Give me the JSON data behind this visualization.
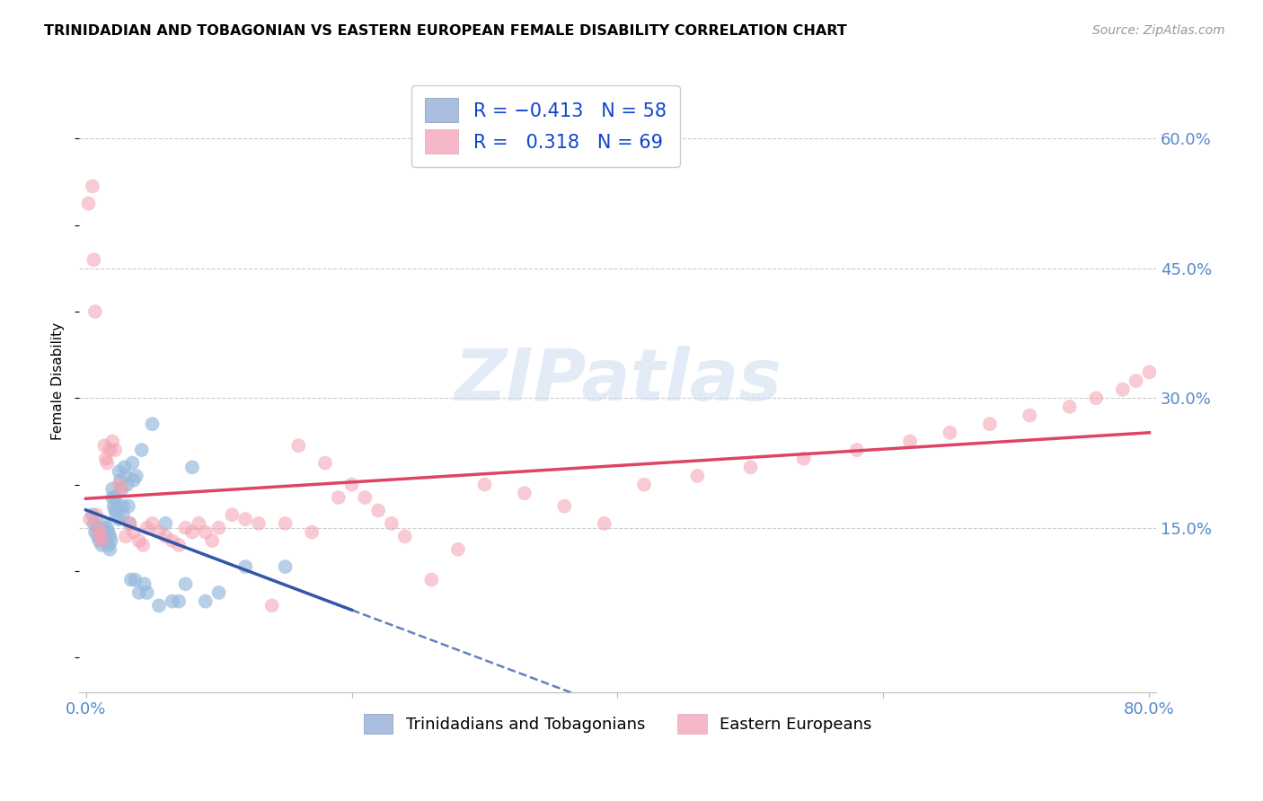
{
  "title": "TRINIDADIAN AND TOBAGONIAN VS EASTERN EUROPEAN FEMALE DISABILITY CORRELATION CHART",
  "source": "Source: ZipAtlas.com",
  "ylabel": "Female Disability",
  "watermark": "ZIPatlas",
  "xlim": [
    -0.005,
    0.805
  ],
  "ylim": [
    -0.04,
    0.68
  ],
  "xtick_pos": [
    0.0,
    0.2,
    0.4,
    0.6,
    0.8
  ],
  "xtick_labels": [
    "0.0%",
    "",
    "",
    "",
    "80.0%"
  ],
  "ytick_values": [
    0.6,
    0.45,
    0.3,
    0.15
  ],
  "ytick_labels": [
    "60.0%",
    "45.0%",
    "30.0%",
    "15.0%"
  ],
  "legend_bottom": [
    "Trinidadians and Tobagonians",
    "Eastern Europeans"
  ],
  "blue_scatter_color": "#99bbdd",
  "pink_scatter_color": "#f4a0b0",
  "blue_line_color": "#3355aa",
  "pink_line_color": "#dd4466",
  "trinidadian_x": [
    0.005,
    0.006,
    0.007,
    0.008,
    0.009,
    0.01,
    0.01,
    0.011,
    0.012,
    0.012,
    0.013,
    0.014,
    0.015,
    0.015,
    0.016,
    0.017,
    0.017,
    0.018,
    0.018,
    0.019,
    0.02,
    0.02,
    0.021,
    0.022,
    0.022,
    0.023,
    0.024,
    0.025,
    0.025,
    0.026,
    0.027,
    0.028,
    0.028,
    0.029,
    0.03,
    0.031,
    0.032,
    0.033,
    0.034,
    0.035,
    0.036,
    0.037,
    0.038,
    0.04,
    0.042,
    0.044,
    0.046,
    0.05,
    0.055,
    0.06,
    0.065,
    0.07,
    0.075,
    0.08,
    0.09,
    0.1,
    0.12,
    0.15
  ],
  "trinidadian_y": [
    0.165,
    0.155,
    0.145,
    0.15,
    0.14,
    0.145,
    0.135,
    0.15,
    0.14,
    0.13,
    0.145,
    0.155,
    0.145,
    0.135,
    0.15,
    0.145,
    0.13,
    0.14,
    0.125,
    0.135,
    0.195,
    0.185,
    0.175,
    0.185,
    0.17,
    0.165,
    0.175,
    0.16,
    0.215,
    0.205,
    0.195,
    0.175,
    0.165,
    0.22,
    0.21,
    0.2,
    0.175,
    0.155,
    0.09,
    0.225,
    0.205,
    0.09,
    0.21,
    0.075,
    0.24,
    0.085,
    0.075,
    0.27,
    0.06,
    0.155,
    0.065,
    0.065,
    0.085,
    0.22,
    0.065,
    0.075,
    0.105,
    0.105
  ],
  "eastern_x": [
    0.002,
    0.003,
    0.005,
    0.006,
    0.007,
    0.008,
    0.009,
    0.01,
    0.011,
    0.012,
    0.014,
    0.015,
    0.016,
    0.018,
    0.02,
    0.022,
    0.025,
    0.027,
    0.03,
    0.033,
    0.036,
    0.04,
    0.043,
    0.046,
    0.05,
    0.055,
    0.06,
    0.065,
    0.07,
    0.075,
    0.08,
    0.085,
    0.09,
    0.095,
    0.1,
    0.11,
    0.12,
    0.13,
    0.14,
    0.15,
    0.16,
    0.17,
    0.18,
    0.19,
    0.2,
    0.21,
    0.22,
    0.23,
    0.24,
    0.26,
    0.28,
    0.3,
    0.33,
    0.36,
    0.39,
    0.42,
    0.46,
    0.5,
    0.54,
    0.58,
    0.62,
    0.65,
    0.68,
    0.71,
    0.74,
    0.76,
    0.78,
    0.79,
    0.8
  ],
  "eastern_y": [
    0.525,
    0.16,
    0.545,
    0.46,
    0.4,
    0.165,
    0.15,
    0.145,
    0.14,
    0.135,
    0.245,
    0.23,
    0.225,
    0.24,
    0.25,
    0.24,
    0.2,
    0.195,
    0.14,
    0.155,
    0.145,
    0.135,
    0.13,
    0.15,
    0.155,
    0.145,
    0.14,
    0.135,
    0.13,
    0.15,
    0.145,
    0.155,
    0.145,
    0.135,
    0.15,
    0.165,
    0.16,
    0.155,
    0.06,
    0.155,
    0.245,
    0.145,
    0.225,
    0.185,
    0.2,
    0.185,
    0.17,
    0.155,
    0.14,
    0.09,
    0.125,
    0.2,
    0.19,
    0.175,
    0.155,
    0.2,
    0.21,
    0.22,
    0.23,
    0.24,
    0.25,
    0.26,
    0.27,
    0.28,
    0.29,
    0.3,
    0.31,
    0.32,
    0.33
  ]
}
